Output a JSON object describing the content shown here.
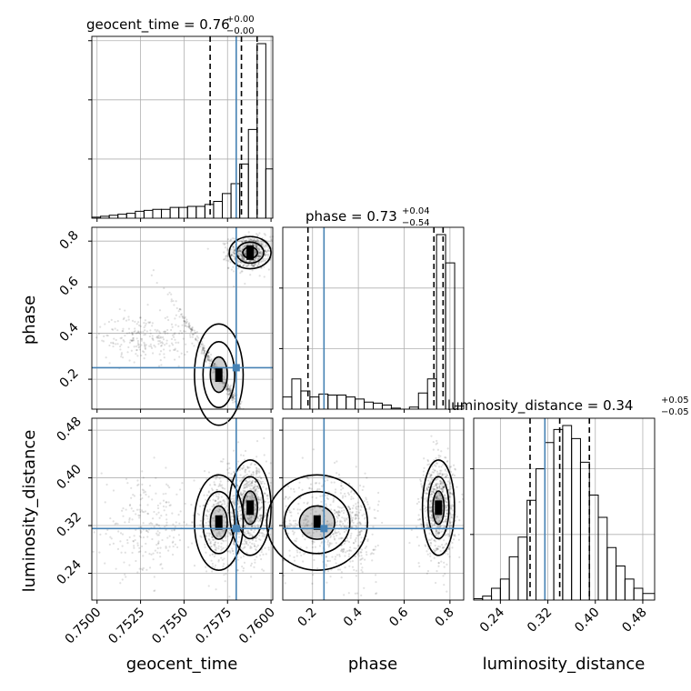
{
  "chart_data": {
    "type": "corner",
    "parameters": [
      "geocent_time",
      "phase",
      "luminosity_distance"
    ],
    "grid": true,
    "truth_color": "#4682b4",
    "titles": [
      {
        "param": "geocent_time",
        "median": "0.76",
        "plus": "+0.00",
        "minus": "−0.00"
      },
      {
        "param": "phase",
        "median": "0.73",
        "plus": "+0.04",
        "minus": "−0.54"
      },
      {
        "param": "luminosity_distance",
        "median": "0.34",
        "plus": "+0.05",
        "minus": "−0.05"
      }
    ],
    "axes": {
      "geocent_time": {
        "range": [
          0.7497,
          0.7601
        ],
        "ticks": [
          0.75,
          0.7525,
          0.755,
          0.7575,
          0.76
        ],
        "tick_labels": [
          "0.7500",
          "0.7525",
          "0.7550",
          "0.7575",
          "0.7600"
        ]
      },
      "phase": {
        "range": [
          0.07,
          0.86
        ],
        "ticks": [
          0.2,
          0.4,
          0.6,
          0.8
        ],
        "tick_labels": [
          "0.2",
          "0.4",
          "0.6",
          "0.8"
        ]
      },
      "luminosity_distance": {
        "range": [
          0.195,
          0.5
        ],
        "ticks": [
          0.24,
          0.32,
          0.4,
          0.48
        ],
        "tick_labels": [
          "0.24",
          "0.32",
          "0.40",
          "0.48"
        ]
      }
    },
    "truths": {
      "geocent_time": 0.758,
      "phase": 0.25,
      "luminosity_distance": 0.315
    },
    "quantiles": {
      "geocent_time": [
        0.7565,
        0.7583,
        0.7592
      ],
      "phase": [
        0.18,
        0.73,
        0.77
      ],
      "luminosity_distance": [
        0.29,
        0.34,
        0.39
      ]
    },
    "histograms": {
      "geocent_time": {
        "edges": [
          0.7497,
          0.7502,
          0.7507,
          0.7512,
          0.7517,
          0.7522,
          0.7527,
          0.7532,
          0.7537,
          0.7542,
          0.7547,
          0.7552,
          0.7557,
          0.7562,
          0.7567,
          0.7572,
          0.7577,
          0.7582,
          0.7587,
          0.7592,
          0.7597,
          0.7601
        ],
        "counts": [
          1,
          2,
          3,
          4,
          5,
          7,
          8,
          9,
          9,
          11,
          11,
          12,
          12,
          14,
          17,
          25,
          35,
          55,
          90,
          177,
          50
        ]
      },
      "phase": {
        "edges": [
          0.07,
          0.1095,
          0.149,
          0.1885,
          0.228,
          0.2675,
          0.307,
          0.3465,
          0.386,
          0.4255,
          0.465,
          0.5045,
          0.544,
          0.5835,
          0.623,
          0.6625,
          0.702,
          0.7415,
          0.781,
          0.8205,
          0.86
        ],
        "counts": [
          12,
          30,
          18,
          12,
          15,
          14,
          14,
          12,
          10,
          7,
          6,
          4,
          1,
          0,
          2,
          16,
          30,
          173,
          145,
          3
        ]
      },
      "luminosity_distance": {
        "edges": [
          0.195,
          0.21,
          0.225,
          0.24,
          0.255,
          0.27,
          0.285,
          0.3,
          0.315,
          0.33,
          0.345,
          0.36,
          0.375,
          0.39,
          0.405,
          0.42,
          0.435,
          0.45,
          0.465,
          0.48,
          0.5
        ],
        "counts": [
          1,
          3,
          9,
          16,
          33,
          48,
          76,
          100,
          120,
          130,
          133,
          123,
          105,
          80,
          63,
          40,
          26,
          16,
          9,
          5
        ]
      }
    },
    "posterior_clusters": [
      {
        "geocent_time": 0.7588,
        "phase": 0.75,
        "luminosity_distance": 0.35,
        "weight": 0.55
      },
      {
        "geocent_time": 0.757,
        "phase": 0.22,
        "luminosity_distance": 0.325,
        "weight": 0.28
      },
      {
        "geocent_time": 0.7528,
        "phase": 0.38,
        "luminosity_distance": 0.315,
        "weight": 0.17
      }
    ]
  }
}
